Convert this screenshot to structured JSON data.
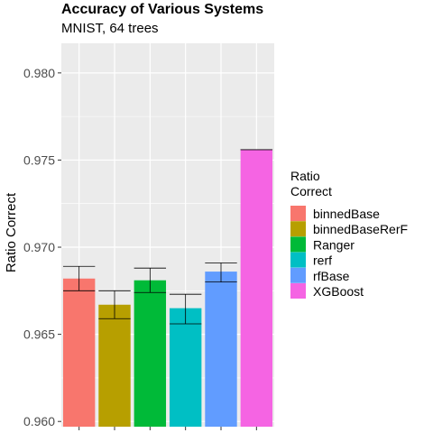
{
  "chart_data": {
    "type": "bar",
    "title": "Accuracy of Various Systems",
    "subtitle": "MNIST, 64 trees",
    "xlabel": "",
    "ylabel": "Ratio Correct",
    "ylim": [
      0.9597,
      0.9817
    ],
    "yticks": [
      0.96,
      0.965,
      0.97,
      0.975,
      0.98
    ],
    "ytick_labels": [
      "0.960",
      "0.965",
      "0.970",
      "0.975",
      "0.980"
    ],
    "grid": true,
    "legend": {
      "title": [
        "Ratio",
        "Correct"
      ],
      "position": "right"
    },
    "categories": [
      "binnedBase",
      "binnedBaseRerF",
      "Ranger",
      "rerf",
      "rfBase",
      "XGBoost"
    ],
    "values": [
      0.9682,
      0.9667,
      0.9681,
      0.9665,
      0.9686,
      0.9756
    ],
    "error_low": [
      0.9675,
      0.9659,
      0.9674,
      0.9656,
      0.968,
      0.9756
    ],
    "error_high": [
      0.9689,
      0.9675,
      0.9688,
      0.9673,
      0.9691,
      0.9756
    ],
    "colors": [
      "#F8766D",
      "#B79F00",
      "#00BA38",
      "#00BFC4",
      "#619CFF",
      "#F564E3"
    ]
  }
}
